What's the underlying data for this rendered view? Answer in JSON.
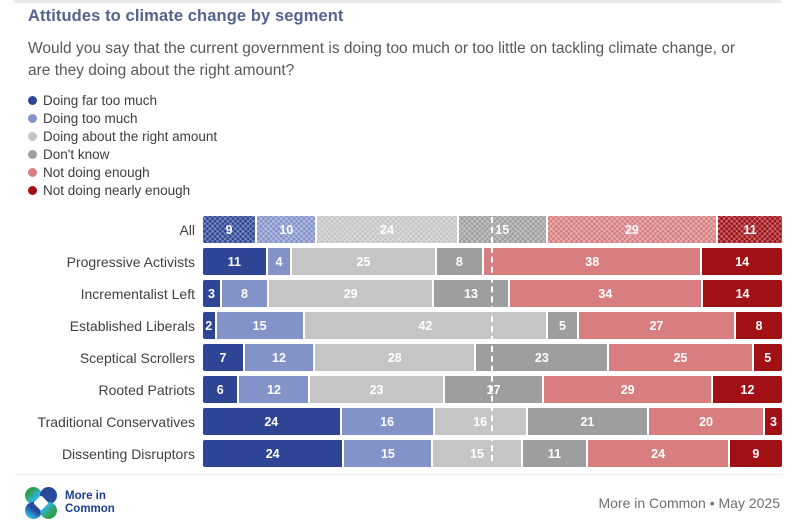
{
  "header": {
    "title": "Attitudes to climate change by segment",
    "question": "Would you say that the current government is doing too much or too little on tackling climate change, or are they doing about the right amount?"
  },
  "legend": [
    {
      "label": "Doing far too much",
      "color": "#2e4494"
    },
    {
      "label": "Doing too much",
      "color": "#8393ca"
    },
    {
      "label": "Doing about the right amount",
      "color": "#c5c5c7"
    },
    {
      "label": "Don't know",
      "color": "#9d9ea0"
    },
    {
      "label": "Not doing enough",
      "color": "#d87e81"
    },
    {
      "label": "Not doing nearly enough",
      "color": "#a01015"
    }
  ],
  "chart_data": {
    "type": "bar",
    "stacked": true,
    "orientation": "horizontal",
    "categories": [
      "All",
      "Progressive Activists",
      "Incrementalist Left",
      "Established Liberals",
      "Sceptical Scrollers",
      "Rooted Patriots",
      "Traditional Conservatives",
      "Dissenting Disruptors"
    ],
    "series": [
      {
        "name": "Doing far too much",
        "color": "#2e4494",
        "values": [
          9,
          11,
          3,
          2,
          7,
          6,
          24,
          24
        ]
      },
      {
        "name": "Doing too much",
        "color": "#8393ca",
        "values": [
          10,
          4,
          8,
          15,
          12,
          12,
          16,
          15
        ]
      },
      {
        "name": "Doing about the right amount",
        "color": "#c5c5c7",
        "values": [
          24,
          25,
          29,
          42,
          28,
          23,
          16,
          15
        ]
      },
      {
        "name": "Don't know",
        "color": "#9d9ea0",
        "values": [
          15,
          8,
          13,
          5,
          23,
          17,
          21,
          11
        ]
      },
      {
        "name": "Not doing enough",
        "color": "#d87e81",
        "values": [
          29,
          38,
          34,
          27,
          25,
          29,
          20,
          24
        ]
      },
      {
        "name": "Not doing nearly enough",
        "color": "#a01015",
        "values": [
          11,
          14,
          14,
          8,
          5,
          12,
          3,
          9
        ]
      }
    ],
    "value_labels": "inside-white-bold",
    "hatched_category": "All",
    "reference_line": {
      "position_fraction": 0.49,
      "style": "white-dashed"
    },
    "legend_position": "top-left",
    "grid": false,
    "axis_ticks": "none"
  },
  "footer": {
    "brand": "More in Common",
    "source": "More in Common • May 2025"
  },
  "colors": {
    "title": "#54638f",
    "question_text": "#58595b",
    "row_label": "#414042",
    "source_text": "#6d6e71",
    "background": "#ffffff"
  }
}
